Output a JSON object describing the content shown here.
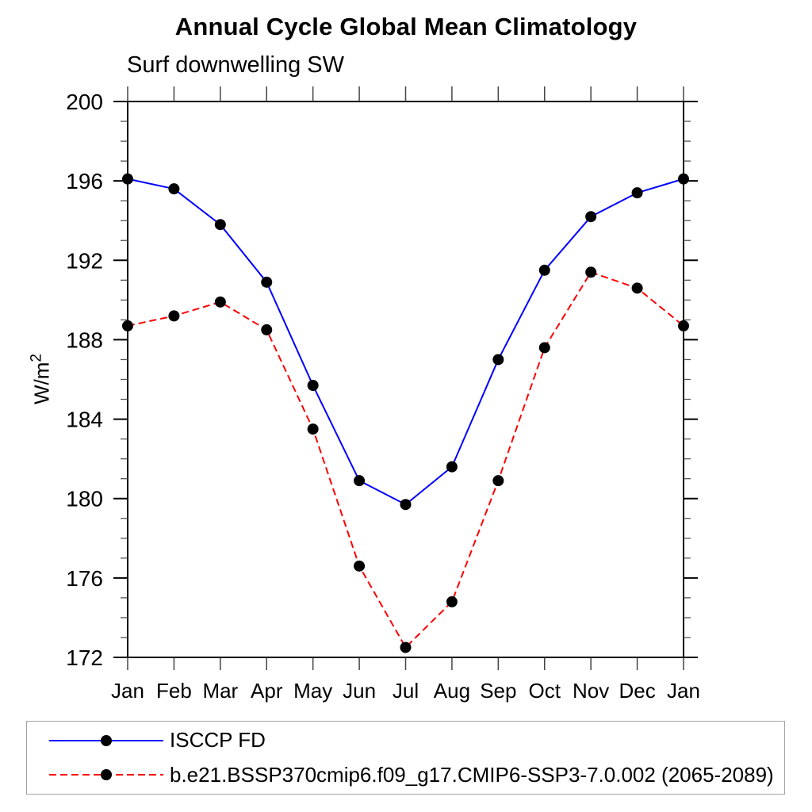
{
  "chart_data": {
    "type": "line",
    "title": "Annual Cycle Global Mean Climatology",
    "subtitle": "Surf downwelling SW",
    "ylabel_base": "W/m",
    "ylabel_sup": "2",
    "categories": [
      "Jan",
      "Feb",
      "Mar",
      "Apr",
      "May",
      "Jun",
      "Jul",
      "Aug",
      "Sep",
      "Oct",
      "Nov",
      "Dec",
      "Jan"
    ],
    "ylim": [
      172,
      200
    ],
    "ytick_major": 4,
    "ytick_minor": 1,
    "grid": false,
    "legend_position": "bottom-left",
    "axis_color": "#000000",
    "marker": "filled-circle",
    "marker_color": "#000000",
    "series": [
      {
        "name": "ISCCP FD",
        "color": "#0000ff",
        "line_style": "solid",
        "values": [
          196.1,
          195.6,
          193.8,
          190.9,
          185.7,
          180.9,
          179.7,
          181.6,
          187.0,
          191.5,
          194.2,
          195.4,
          196.1
        ]
      },
      {
        "name": "b.e21.BSSP370cmip6.f09_g17.CMIP6-SSP3-7.0.002 (2065-2089)",
        "color": "#ff0000",
        "line_style": "dashed",
        "values": [
          188.7,
          189.2,
          189.9,
          188.5,
          183.5,
          176.6,
          172.5,
          174.8,
          180.9,
          187.6,
          191.4,
          190.6,
          188.7
        ]
      }
    ]
  }
}
